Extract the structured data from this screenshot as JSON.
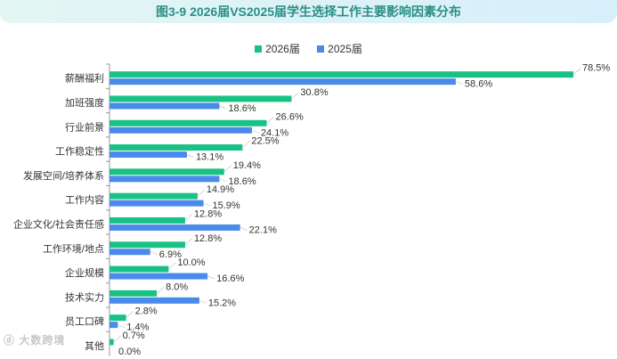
{
  "title": "图3-9 2026届VS2025届学生选择工作主要影响因素分布",
  "watermark": "大数跨境",
  "colors": {
    "series_2026": "#19c284",
    "series_2025": "#4a8bea",
    "axis": "#999999"
  },
  "chart_data": {
    "type": "bar",
    "orientation": "horizontal",
    "categories": [
      "薪酬福利",
      "加班强度",
      "行业前景",
      "工作稳定性",
      "发展空间/培养体系",
      "工作内容",
      "企业文化/社会责任感",
      "工作环境/地点",
      "企业规模",
      "技术实力",
      "员工口碑",
      "其他"
    ],
    "series": [
      {
        "name": "2026届",
        "values": [
          78.5,
          30.8,
          26.6,
          22.5,
          19.4,
          14.9,
          12.8,
          12.8,
          10.0,
          8.0,
          2.8,
          0.7
        ],
        "labels": [
          "78.5%",
          "30.8%",
          "26.6%",
          "22.5%",
          "19.4%",
          "14.9%",
          "12.8%",
          "12.8%",
          "10.0%",
          "8.0%",
          "2.8%",
          "0.7%"
        ]
      },
      {
        "name": "2025届",
        "values": [
          58.6,
          18.6,
          24.1,
          13.1,
          18.6,
          15.9,
          22.1,
          6.9,
          16.6,
          15.2,
          1.4,
          0.0
        ],
        "labels": [
          "58.6%",
          "18.6%",
          "24.1%",
          "13.1%",
          "18.6%",
          "15.9%",
          "22.1%",
          "6.9%",
          "16.6%",
          "15.2%",
          "1.4%",
          "0.0%"
        ]
      }
    ],
    "xlim": [
      0,
      80
    ],
    "legend_position": "top-center",
    "grid": false
  }
}
